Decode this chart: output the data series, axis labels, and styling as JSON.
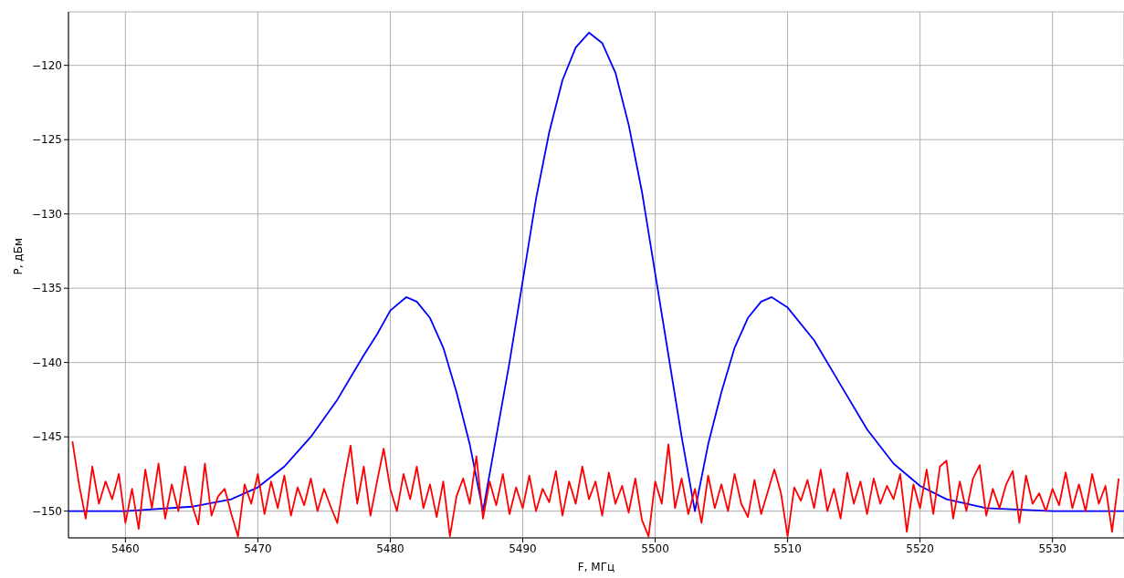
{
  "chart_data": {
    "type": "line",
    "xlabel": "F, МГц",
    "ylabel": "P, дБм",
    "xlim": [
      5455.7,
      5535.4
    ],
    "ylim": [
      -151.8,
      -116.4
    ],
    "xticks": [
      5460,
      5470,
      5480,
      5490,
      5500,
      5510,
      5520,
      5530
    ],
    "yticks": [
      -150,
      -145,
      -140,
      -135,
      -130,
      -125,
      -120
    ],
    "grid": true,
    "series": [
      {
        "color": "#0000ff",
        "x": [
          5455.7,
          5460,
          5465,
          5468,
          5470,
          5472,
          5474,
          5476,
          5478,
          5479,
          5480,
          5481.2,
          5482,
          5483,
          5484,
          5485,
          5486,
          5487,
          5488,
          5489,
          5490,
          5491,
          5492,
          5493,
          5494,
          5495,
          5496,
          5497,
          5498,
          5499,
          5500,
          5501,
          5502,
          5503,
          5504,
          5505,
          5506,
          5507,
          5508,
          5508.8,
          5510,
          5512,
          5514,
          5516,
          5518,
          5520,
          5522,
          5525,
          5530,
          5535.4
        ],
        "values": [
          -150,
          -150,
          -149.7,
          -149.2,
          -148.4,
          -147,
          -145,
          -142.5,
          -139.5,
          -138.1,
          -136.5,
          -135.6,
          -135.9,
          -137,
          -139,
          -142,
          -145.5,
          -150,
          -145,
          -140,
          -134.5,
          -129,
          -124.5,
          -121,
          -118.8,
          -117.8,
          -118.5,
          -120.5,
          -124,
          -128.5,
          -134,
          -139.5,
          -145,
          -150,
          -145.5,
          -142,
          -139,
          -137,
          -135.9,
          -135.6,
          -136.3,
          -138.5,
          -141.5,
          -144.5,
          -146.8,
          -148.3,
          -149.2,
          -149.8,
          -150,
          -150
        ]
      },
      {
        "color": "#ff0000",
        "x": [
          5456,
          5456.5,
          5457,
          5457.5,
          5458,
          5458.5,
          5459,
          5459.5,
          5460,
          5460.5,
          5461,
          5461.5,
          5462,
          5462.5,
          5463,
          5463.5,
          5464,
          5464.5,
          5465,
          5465.5,
          5466,
          5466.5,
          5467,
          5467.5,
          5468,
          5468.5,
          5469,
          5469.5,
          5470,
          5470.5,
          5471,
          5471.5,
          5472,
          5472.5,
          5473,
          5473.5,
          5474,
          5474.5,
          5475,
          5475.5,
          5476,
          5476.5,
          5477,
          5477.5,
          5478,
          5478.5,
          5479,
          5479.5,
          5480,
          5480.5,
          5481,
          5481.5,
          5482,
          5482.5,
          5483,
          5483.5,
          5484,
          5484.5,
          5485,
          5485.5,
          5486,
          5486.5,
          5487,
          5487.5,
          5488,
          5488.5,
          5489,
          5489.5,
          5490,
          5490.5,
          5491,
          5491.5,
          5492,
          5492.5,
          5493,
          5493.5,
          5494,
          5494.5,
          5495,
          5495.5,
          5496,
          5496.5,
          5497,
          5497.5,
          5498,
          5498.5,
          5499,
          5499.5,
          5500,
          5500.5,
          5501,
          5501.5,
          5502,
          5502.5,
          5503,
          5503.5,
          5504,
          5504.5,
          5505,
          5505.5,
          5506,
          5506.5,
          5507,
          5507.5,
          5508,
          5508.5,
          5509,
          5509.5,
          5510,
          5510.5,
          5511,
          5511.5,
          5512,
          5512.5,
          5513,
          5513.5,
          5514,
          5514.5,
          5515,
          5515.5,
          5516,
          5516.5,
          5517,
          5517.5,
          5518,
          5518.5,
          5519,
          5519.5,
          5520,
          5520.5,
          5521,
          5521.5,
          5522,
          5522.5,
          5523,
          5523.5,
          5524,
          5524.5,
          5525,
          5525.5,
          5526,
          5526.5,
          5527,
          5527.5,
          5528,
          5528.5,
          5529,
          5529.5,
          5530,
          5530.5,
          5531,
          5531.5,
          5532,
          5532.5,
          5533,
          5533.5,
          5534,
          5534.5,
          5535
        ],
        "values": [
          -145.3,
          -148.2,
          -150.5,
          -147,
          -149.5,
          -148,
          -149.2,
          -147.5,
          -150.8,
          -148.5,
          -151.2,
          -147.2,
          -149.8,
          -146.8,
          -150.5,
          -148.2,
          -150,
          -147,
          -149.5,
          -150.9,
          -146.8,
          -150.3,
          -149,
          -148.5,
          -150.2,
          -151.7,
          -148.2,
          -149.5,
          -147.5,
          -150.2,
          -148,
          -149.8,
          -147.6,
          -150.3,
          -148.4,
          -149.6,
          -147.8,
          -150,
          -148.5,
          -149.7,
          -150.8,
          -148,
          -145.6,
          -149.5,
          -147,
          -150.3,
          -148,
          -145.8,
          -148.5,
          -150,
          -147.5,
          -149.2,
          -147,
          -149.8,
          -148.2,
          -150.4,
          -148,
          -151.7,
          -149,
          -147.8,
          -149.5,
          -146.3,
          -150.5,
          -148,
          -149.6,
          -147.5,
          -150.2,
          -148.4,
          -149.8,
          -147.6,
          -150,
          -148.5,
          -149.4,
          -147.3,
          -150.3,
          -148,
          -149.5,
          -147,
          -149.2,
          -148,
          -150.3,
          -147.4,
          -149.5,
          -148.3,
          -150.1,
          -147.8,
          -150.6,
          -151.7,
          -148,
          -149.5,
          -145.5,
          -149.8,
          -147.8,
          -150.2,
          -148.5,
          -150.8,
          -147.6,
          -149.8,
          -148.2,
          -150,
          -147.5,
          -149.5,
          -150.4,
          -147.9,
          -150.2,
          -148.7,
          -147.2,
          -148.8,
          -151.7,
          -148.4,
          -149.3,
          -147.9,
          -149.8,
          -147.2,
          -150,
          -148.5,
          -150.5,
          -147.4,
          -149.5,
          -148,
          -150.2,
          -147.8,
          -149.5,
          -148.3,
          -149.2,
          -147.5,
          -151.4,
          -148.2,
          -149.8,
          -147.2,
          -150.2,
          -147,
          -146.6,
          -150.5,
          -148,
          -150,
          -147.8,
          -146.9,
          -150.3,
          -148.5,
          -149.8,
          -148.2,
          -147.3,
          -150.8,
          -147.6,
          -149.5,
          -148.8,
          -150,
          -148.5,
          -149.6,
          -147.4,
          -149.8,
          -148.2,
          -150,
          -147.5,
          -149.5,
          -148.3,
          -151.4,
          -147.8
        ]
      }
    ]
  }
}
